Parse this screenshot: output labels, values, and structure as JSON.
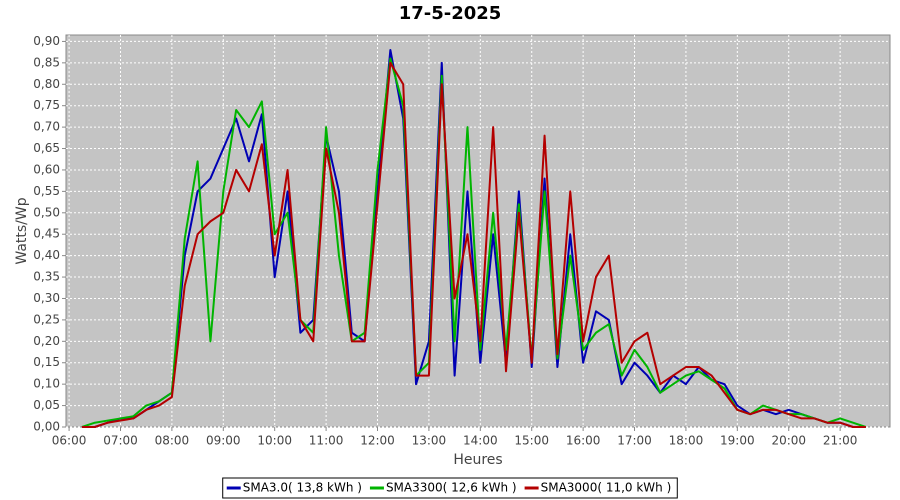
{
  "chart_data": {
    "type": "line",
    "title": "17-5-2025",
    "x_label": "Heures",
    "y_label": "Watts/Wp",
    "x": [
      6.25,
      6.5,
      6.75,
      7,
      7.25,
      7.5,
      7.75,
      8,
      8.25,
      8.5,
      8.75,
      9,
      9.25,
      9.5,
      9.75,
      10,
      10.25,
      10.5,
      10.75,
      11,
      11.25,
      11.5,
      11.75,
      12,
      12.25,
      12.5,
      12.75,
      13,
      13.25,
      13.5,
      13.75,
      14,
      14.25,
      14.5,
      14.75,
      15,
      15.25,
      15.5,
      15.75,
      16,
      16.25,
      16.5,
      16.75,
      17,
      17.25,
      17.5,
      17.75,
      18,
      18.25,
      18.5,
      18.75,
      19,
      19.25,
      19.5,
      19.75,
      20,
      20.25,
      20.5,
      20.75,
      21,
      21.25,
      21.5
    ],
    "series": [
      {
        "name": "SMA3.0( 13,8 kWh )",
        "color": "#0000b4",
        "values": [
          0,
          0,
          0.01,
          0.02,
          0.02,
          0.04,
          0.06,
          0.08,
          0.4,
          0.55,
          0.58,
          0.65,
          0.72,
          0.62,
          0.73,
          0.35,
          0.55,
          0.22,
          0.25,
          0.68,
          0.55,
          0.22,
          0.2,
          0.55,
          0.88,
          0.72,
          0.1,
          0.2,
          0.85,
          0.12,
          0.55,
          0.15,
          0.45,
          0.15,
          0.55,
          0.14,
          0.58,
          0.14,
          0.45,
          0.15,
          0.27,
          0.25,
          0.1,
          0.15,
          0.12,
          0.08,
          0.12,
          0.1,
          0.14,
          0.11,
          0.1,
          0.05,
          0.03,
          0.04,
          0.03,
          0.04,
          0.03,
          0.02,
          0.01,
          0.01,
          0,
          0
        ]
      },
      {
        "name": "SMA3300( 12,6 kWh )",
        "color": "#00b400",
        "values": [
          0,
          0.01,
          0.015,
          0.02,
          0.025,
          0.05,
          0.06,
          0.08,
          0.44,
          0.62,
          0.2,
          0.55,
          0.74,
          0.7,
          0.76,
          0.45,
          0.5,
          0.25,
          0.22,
          0.7,
          0.4,
          0.2,
          0.22,
          0.6,
          0.86,
          0.75,
          0.12,
          0.15,
          0.82,
          0.2,
          0.7,
          0.18,
          0.5,
          0.18,
          0.52,
          0.16,
          0.55,
          0.16,
          0.4,
          0.18,
          0.22,
          0.24,
          0.12,
          0.18,
          0.14,
          0.08,
          0.1,
          0.12,
          0.13,
          0.11,
          0.09,
          0.04,
          0.03,
          0.05,
          0.04,
          0.03,
          0.03,
          0.02,
          0.01,
          0.02,
          0.01,
          0
        ]
      },
      {
        "name": "SMA3000( 11,0 kWh )",
        "color": "#b40000",
        "values": [
          0,
          0,
          0.01,
          0.015,
          0.02,
          0.04,
          0.05,
          0.07,
          0.33,
          0.45,
          0.48,
          0.5,
          0.6,
          0.55,
          0.66,
          0.4,
          0.6,
          0.25,
          0.2,
          0.65,
          0.5,
          0.2,
          0.2,
          0.52,
          0.85,
          0.8,
          0.12,
          0.12,
          0.8,
          0.3,
          0.45,
          0.2,
          0.7,
          0.13,
          0.5,
          0.15,
          0.68,
          0.17,
          0.55,
          0.2,
          0.35,
          0.4,
          0.15,
          0.2,
          0.22,
          0.1,
          0.12,
          0.14,
          0.14,
          0.12,
          0.08,
          0.04,
          0.03,
          0.04,
          0.04,
          0.03,
          0.02,
          0.02,
          0.01,
          0.01,
          0,
          0
        ]
      }
    ],
    "xlim": [
      5.94,
      21.97
    ],
    "xticks": [
      {
        "value": 6,
        "label": "06:00"
      },
      {
        "value": 7,
        "label": "07:00"
      },
      {
        "value": 8,
        "label": "08:00"
      },
      {
        "value": 9,
        "label": "09:00"
      },
      {
        "value": 10,
        "label": "10:00"
      },
      {
        "value": 11,
        "label": "11:00"
      },
      {
        "value": 12,
        "label": "12:00"
      },
      {
        "value": 13,
        "label": "13:00"
      },
      {
        "value": 14,
        "label": "14:00"
      },
      {
        "value": 15,
        "label": "15:00"
      },
      {
        "value": 16,
        "label": "16:00"
      },
      {
        "value": 17,
        "label": "17:00"
      },
      {
        "value": 18,
        "label": "18:00"
      },
      {
        "value": 19,
        "label": "19:00"
      },
      {
        "value": 20,
        "label": "20:00"
      },
      {
        "value": 21,
        "label": "21:00"
      }
    ],
    "ylim": [
      0,
      0.915
    ],
    "yticks": [
      {
        "value": 0,
        "label": "0,00"
      },
      {
        "value": 0.05,
        "label": "0,05"
      },
      {
        "value": 0.1,
        "label": "0,10"
      },
      {
        "value": 0.15,
        "label": "0,15"
      },
      {
        "value": 0.2,
        "label": "0,20"
      },
      {
        "value": 0.25,
        "label": "0,25"
      },
      {
        "value": 0.3,
        "label": "0,30"
      },
      {
        "value": 0.35,
        "label": "0,35"
      },
      {
        "value": 0.4,
        "label": "0,40"
      },
      {
        "value": 0.45,
        "label": "0,45"
      },
      {
        "value": 0.5,
        "label": "0,50"
      },
      {
        "value": 0.55,
        "label": "0,55"
      },
      {
        "value": 0.6,
        "label": "0,60"
      },
      {
        "value": 0.65,
        "label": "0,65"
      },
      {
        "value": 0.7,
        "label": "0,70"
      },
      {
        "value": 0.75,
        "label": "0,75"
      },
      {
        "value": 0.8,
        "label": "0,80"
      },
      {
        "value": 0.85,
        "label": "0,85"
      },
      {
        "value": 0.9,
        "label": "0,90"
      }
    ],
    "grid": true,
    "legend": "bottom"
  }
}
